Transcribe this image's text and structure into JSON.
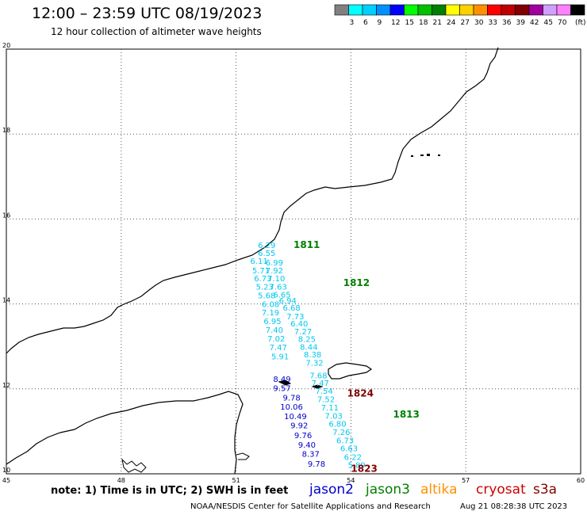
{
  "title": "12:00 – 23:59 UTC 08/19/2023",
  "subtitle": "12 hour collection of altimeter wave heights",
  "note": "note: 1) Time is in UTC; 2) SWH is in feet",
  "credit": "NOAA/NESDIS Center for Satellite Applications and Research",
  "timestamp": "Aug 21 08:28:38 UTC 2023",
  "legend_unit": "(ft)",
  "color_scale": [
    {
      "label": "",
      "color": "#808080"
    },
    {
      "label": "3",
      "color": "#00ffff"
    },
    {
      "label": "6",
      "color": "#00d0ff"
    },
    {
      "label": "9",
      "color": "#0090ff"
    },
    {
      "label": "12",
      "color": "#0000ff"
    },
    {
      "label": "15",
      "color": "#00ff00"
    },
    {
      "label": "18",
      "color": "#00c000"
    },
    {
      "label": "21",
      "color": "#008000"
    },
    {
      "label": "24",
      "color": "#ffff00"
    },
    {
      "label": "27",
      "color": "#ffd000"
    },
    {
      "label": "30",
      "color": "#ff9000"
    },
    {
      "label": "33",
      "color": "#ff0000"
    },
    {
      "label": "36",
      "color": "#c00000"
    },
    {
      "label": "39",
      "color": "#800000"
    },
    {
      "label": "42",
      "color": "#a000a0"
    },
    {
      "label": "45",
      "color": "#d0a0ff"
    },
    {
      "label": "70",
      "color": "#ff80ff"
    },
    {
      "label": "",
      "color": "#000000"
    }
  ],
  "satellites": [
    {
      "name": "jason2",
      "color": "#0000cc"
    },
    {
      "name": "jason3",
      "color": "#008000"
    },
    {
      "name": "altika",
      "color": "#ff9000"
    },
    {
      "name": "cryosat",
      "color": "#cc0000"
    },
    {
      "name": "s3a",
      "color": "#800000"
    }
  ],
  "axes": {
    "lon_ticks": [
      "45",
      "48",
      "51",
      "54",
      "57",
      "60"
    ],
    "lat_ticks": [
      "20",
      "18",
      "16",
      "14",
      "12",
      "10"
    ],
    "lon_range": [
      45,
      60
    ],
    "lat_range": [
      10,
      20
    ]
  },
  "pass_labels": [
    {
      "text": "1811",
      "lon": 52.5,
      "lat": 15.32,
      "color": "#008000"
    },
    {
      "text": "1812",
      "lon": 53.8,
      "lat": 14.42,
      "color": "#008000"
    },
    {
      "text": "1813",
      "lon": 55.1,
      "lat": 11.32,
      "color": "#008000"
    },
    {
      "text": "1824",
      "lon": 53.9,
      "lat": 11.82,
      "color": "#800000"
    },
    {
      "text": "1823",
      "lon": 54.0,
      "lat": 10.05,
      "color": "#800000"
    }
  ],
  "tracks": [
    {
      "name": "track-a",
      "color": "#00c8f0",
      "points": [
        {
          "v": "6.29",
          "lon": 51.8,
          "lat": 15.32
        },
        {
          "v": "6.55",
          "lon": 51.8,
          "lat": 15.13
        },
        {
          "v": "6.11",
          "lon": 51.6,
          "lat": 14.94
        },
        {
          "v": "6.99",
          "lon": 52.0,
          "lat": 14.91
        },
        {
          "v": "5.71",
          "lon": 51.65,
          "lat": 14.72
        },
        {
          "v": "7.92",
          "lon": 52.0,
          "lat": 14.72
        },
        {
          "v": "6.73",
          "lon": 51.7,
          "lat": 14.53
        },
        {
          "v": "7.10",
          "lon": 52.05,
          "lat": 14.53
        },
        {
          "v": "5.23",
          "lon": 51.75,
          "lat": 14.34
        },
        {
          "v": "7.63",
          "lon": 52.1,
          "lat": 14.34
        },
        {
          "v": "6.65",
          "lon": 52.2,
          "lat": 14.15
        },
        {
          "v": "5.68",
          "lon": 51.8,
          "lat": 14.13
        },
        {
          "v": "6.94",
          "lon": 52.35,
          "lat": 14.01
        },
        {
          "v": "6.08",
          "lon": 51.9,
          "lat": 13.93
        },
        {
          "v": "6.68",
          "lon": 52.45,
          "lat": 13.84
        },
        {
          "v": "7.19",
          "lon": 51.9,
          "lat": 13.73
        },
        {
          "v": "7.73",
          "lon": 52.55,
          "lat": 13.64
        },
        {
          "v": "6.95",
          "lon": 51.95,
          "lat": 13.53
        },
        {
          "v": "6.40",
          "lon": 52.65,
          "lat": 13.47
        },
        {
          "v": "7.40",
          "lon": 52.0,
          "lat": 13.32
        },
        {
          "v": "7.27",
          "lon": 52.75,
          "lat": 13.28
        },
        {
          "v": "7.02",
          "lon": 52.05,
          "lat": 13.12
        },
        {
          "v": "8.25",
          "lon": 52.85,
          "lat": 13.11
        },
        {
          "v": "8.44",
          "lon": 52.9,
          "lat": 12.92
        },
        {
          "v": "7.47",
          "lon": 52.1,
          "lat": 12.91
        },
        {
          "v": "8.38",
          "lon": 53.0,
          "lat": 12.74
        },
        {
          "v": "5.91",
          "lon": 52.15,
          "lat": 12.7
        },
        {
          "v": "7.32",
          "lon": 53.05,
          "lat": 12.55
        },
        {
          "v": "7.68",
          "lon": 53.15,
          "lat": 12.25
        },
        {
          "v": "7.47",
          "lon": 53.2,
          "lat": 12.07
        },
        {
          "v": "7.54",
          "lon": 53.3,
          "lat": 11.88
        },
        {
          "v": "7.52",
          "lon": 53.35,
          "lat": 11.69
        },
        {
          "v": "7.11",
          "lon": 53.45,
          "lat": 11.49
        },
        {
          "v": "7.03",
          "lon": 53.55,
          "lat": 11.3
        },
        {
          "v": "6.80",
          "lon": 53.65,
          "lat": 11.11
        },
        {
          "v": "7.26",
          "lon": 53.75,
          "lat": 10.91
        },
        {
          "v": "6.73",
          "lon": 53.85,
          "lat": 10.72
        },
        {
          "v": "6.63",
          "lon": 53.95,
          "lat": 10.53
        },
        {
          "v": "6.22",
          "lon": 54.05,
          "lat": 10.33
        },
        {
          "v": "5.89",
          "lon": 54.15,
          "lat": 10.14
        }
      ]
    },
    {
      "name": "track-b",
      "color": "#0000c8",
      "points": [
        {
          "v": "8.49",
          "lon": 52.2,
          "lat": 12.16
        },
        {
          "v": "9.57",
          "lon": 52.2,
          "lat": 11.95
        },
        {
          "v": "9.78",
          "lon": 52.45,
          "lat": 11.73
        },
        {
          "v": "10.06",
          "lon": 52.45,
          "lat": 11.51
        },
        {
          "v": "10.49",
          "lon": 52.55,
          "lat": 11.29
        },
        {
          "v": "9.92",
          "lon": 52.65,
          "lat": 11.07
        },
        {
          "v": "9.76",
          "lon": 52.75,
          "lat": 10.84
        },
        {
          "v": "9.40",
          "lon": 52.85,
          "lat": 10.62
        },
        {
          "v": "8.37",
          "lon": 52.95,
          "lat": 10.4
        },
        {
          "v": "9.78",
          "lon": 53.1,
          "lat": 10.17
        }
      ]
    }
  ]
}
